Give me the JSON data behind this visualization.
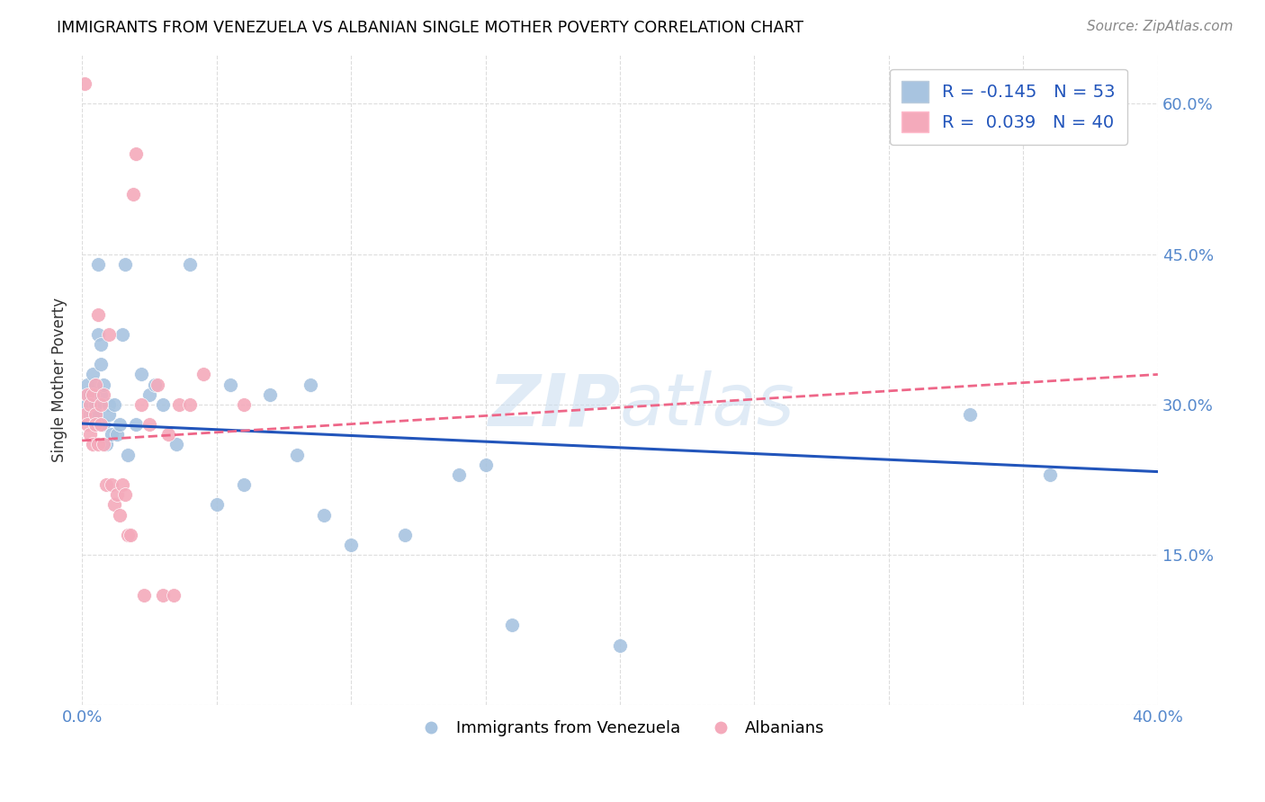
{
  "title": "IMMIGRANTS FROM VENEZUELA VS ALBANIAN SINGLE MOTHER POVERTY CORRELATION CHART",
  "source": "Source: ZipAtlas.com",
  "ylabel": "Single Mother Poverty",
  "xlim": [
    0.0,
    0.4
  ],
  "ylim": [
    0.0,
    0.65
  ],
  "watermark": "ZIPatlas",
  "legend_label1": "R = -0.145   N = 53",
  "legend_label2": "R =  0.039   N = 40",
  "legend_label_bottom1": "Immigrants from Venezuela",
  "legend_label_bottom2": "Albanians",
  "color_blue": "#A8C4E0",
  "color_pink": "#F4AABB",
  "line_blue": "#2255BB",
  "line_pink": "#EE6688",
  "venezuela_x": [
    0.001,
    0.001,
    0.002,
    0.002,
    0.003,
    0.003,
    0.003,
    0.004,
    0.004,
    0.004,
    0.005,
    0.005,
    0.005,
    0.005,
    0.006,
    0.006,
    0.007,
    0.007,
    0.007,
    0.008,
    0.008,
    0.009,
    0.01,
    0.01,
    0.011,
    0.012,
    0.013,
    0.014,
    0.015,
    0.016,
    0.017,
    0.02,
    0.022,
    0.025,
    0.027,
    0.03,
    0.035,
    0.04,
    0.05,
    0.055,
    0.06,
    0.07,
    0.08,
    0.085,
    0.09,
    0.1,
    0.12,
    0.14,
    0.15,
    0.16,
    0.2,
    0.33,
    0.36
  ],
  "venezuela_y": [
    0.31,
    0.3,
    0.32,
    0.3,
    0.31,
    0.3,
    0.29,
    0.33,
    0.31,
    0.29,
    0.3,
    0.29,
    0.28,
    0.32,
    0.37,
    0.44,
    0.36,
    0.34,
    0.31,
    0.32,
    0.28,
    0.26,
    0.3,
    0.29,
    0.27,
    0.3,
    0.27,
    0.28,
    0.37,
    0.44,
    0.25,
    0.28,
    0.33,
    0.31,
    0.32,
    0.3,
    0.26,
    0.44,
    0.2,
    0.32,
    0.22,
    0.31,
    0.25,
    0.32,
    0.19,
    0.16,
    0.17,
    0.23,
    0.24,
    0.08,
    0.06,
    0.29,
    0.23
  ],
  "albanian_x": [
    0.001,
    0.001,
    0.002,
    0.002,
    0.003,
    0.003,
    0.004,
    0.004,
    0.005,
    0.005,
    0.005,
    0.006,
    0.006,
    0.007,
    0.007,
    0.008,
    0.008,
    0.009,
    0.01,
    0.011,
    0.012,
    0.013,
    0.014,
    0.015,
    0.016,
    0.017,
    0.018,
    0.019,
    0.02,
    0.022,
    0.023,
    0.025,
    0.028,
    0.03,
    0.032,
    0.034,
    0.036,
    0.04,
    0.045,
    0.06
  ],
  "albanian_y": [
    0.62,
    0.29,
    0.31,
    0.28,
    0.3,
    0.27,
    0.31,
    0.26,
    0.29,
    0.28,
    0.32,
    0.26,
    0.39,
    0.28,
    0.3,
    0.26,
    0.31,
    0.22,
    0.37,
    0.22,
    0.2,
    0.21,
    0.19,
    0.22,
    0.21,
    0.17,
    0.17,
    0.51,
    0.55,
    0.3,
    0.11,
    0.28,
    0.32,
    0.11,
    0.27,
    0.11,
    0.3,
    0.3,
    0.33,
    0.3
  ],
  "trend_v_x0": 0.0,
  "trend_v_y0": 0.281,
  "trend_v_x1": 0.4,
  "trend_v_y1": 0.233,
  "trend_a_x0": 0.0,
  "trend_a_y0": 0.264,
  "trend_a_x1": 0.4,
  "trend_a_y1": 0.33
}
